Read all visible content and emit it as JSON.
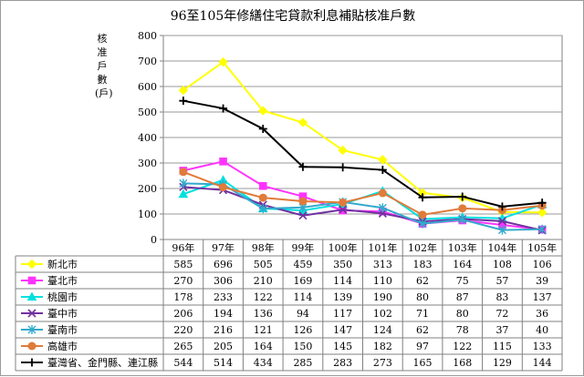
{
  "chart_data": {
    "type": "line",
    "title": "96至105年修繕住宅貸款利息補貼核准戶數",
    "ylabel": "核准戶數(戶)",
    "xlabel": "",
    "ylim": [
      0,
      800
    ],
    "yticks": [
      "0",
      "100",
      "200",
      "300",
      "400",
      "500",
      "600",
      "700",
      "800"
    ],
    "grid": true,
    "legend": "data-table-below",
    "categories": [
      "96年",
      "97年",
      "98年",
      "99年",
      "100年",
      "101年",
      "102年",
      "103年",
      "104年",
      "105年"
    ],
    "series": [
      {
        "name": "新北市",
        "color": "#ffff00",
        "marker": "diamond",
        "values": [
          585,
          696,
          505,
          459,
          350,
          313,
          183,
          164,
          108,
          106
        ]
      },
      {
        "name": "臺北市",
        "color": "#ff33ff",
        "marker": "square",
        "values": [
          270,
          306,
          210,
          169,
          114,
          110,
          62,
          75,
          57,
          39
        ]
      },
      {
        "name": "桃園市",
        "color": "#00e0e0",
        "marker": "triangle",
        "values": [
          178,
          233,
          122,
          114,
          139,
          190,
          80,
          87,
          83,
          137
        ]
      },
      {
        "name": "臺中市",
        "color": "#7030a0",
        "marker": "x",
        "values": [
          206,
          194,
          136,
          94,
          117,
          102,
          71,
          80,
          72,
          36
        ]
      },
      {
        "name": "臺南市",
        "color": "#33aacc",
        "marker": "star",
        "values": [
          220,
          216,
          121,
          126,
          147,
          124,
          62,
          78,
          37,
          40
        ]
      },
      {
        "name": "高雄市",
        "color": "#e07b39",
        "marker": "circle",
        "values": [
          265,
          205,
          164,
          150,
          145,
          182,
          97,
          122,
          115,
          133
        ]
      },
      {
        "name": "臺灣省、金門縣、連江縣",
        "color": "#000000",
        "marker": "plus",
        "values": [
          544,
          514,
          434,
          285,
          283,
          273,
          165,
          168,
          129,
          144
        ]
      }
    ]
  }
}
